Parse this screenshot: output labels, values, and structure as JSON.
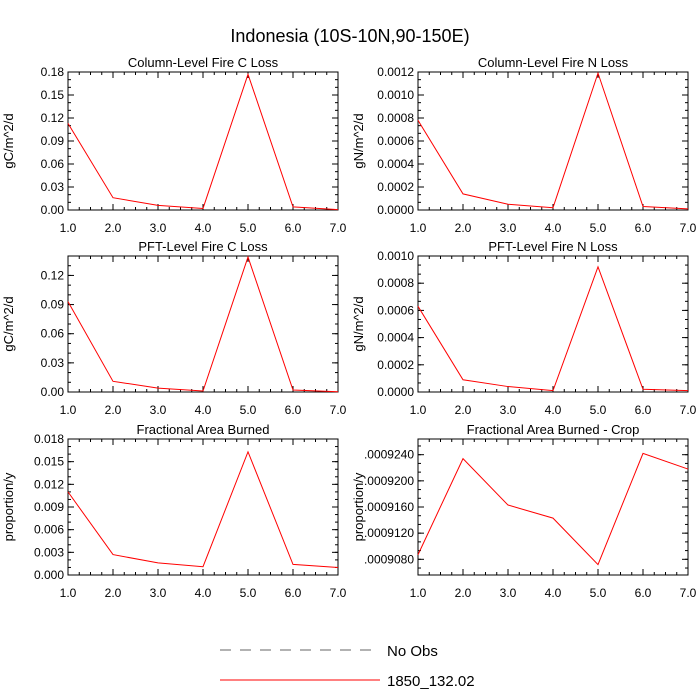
{
  "title": "Indonesia (10S-10N,90-150E)",
  "colors": {
    "series": "#ff0000",
    "obs": "#666666",
    "axis": "#000000"
  },
  "legend": [
    {
      "label": "No Obs",
      "style": "dashed"
    },
    {
      "label": "1850_132.02",
      "style": "solid"
    }
  ],
  "chart_data": [
    {
      "type": "line",
      "title": "Column-Level Fire C Loss",
      "ylabel": "gC/m^2/d",
      "xlim": [
        1,
        7
      ],
      "ylim": [
        0,
        0.18
      ],
      "xticks": [
        "1.0",
        "2.0",
        "3.0",
        "4.0",
        "5.0",
        "6.0",
        "7.0"
      ],
      "yticks": [
        "0.00",
        "0.03",
        "0.06",
        "0.09",
        "0.12",
        "0.15",
        "0.18"
      ],
      "series": [
        {
          "name": "1850_132.02",
          "x": [
            1,
            2,
            3,
            4,
            5,
            6,
            7
          ],
          "values": [
            0.113,
            0.016,
            0.006,
            0.002,
            0.177,
            0.004,
            0.0005
          ]
        }
      ]
    },
    {
      "type": "line",
      "title": "Column-Level Fire N Loss",
      "ylabel": "gN/m^2/d",
      "xlim": [
        1,
        7
      ],
      "ylim": [
        0,
        0.0012
      ],
      "xticks": [
        "1.0",
        "2.0",
        "3.0",
        "4.0",
        "5.0",
        "6.0",
        "7.0"
      ],
      "yticks": [
        "0.0000",
        "0.0002",
        "0.0004",
        "0.0006",
        "0.0008",
        "0.0010",
        "0.0012"
      ],
      "series": [
        {
          "name": "1850_132.02",
          "x": [
            1,
            2,
            3,
            4,
            5,
            6,
            7
          ],
          "values": [
            0.00078,
            0.00014,
            5e-05,
            2e-05,
            0.00119,
            3e-05,
            1e-05
          ]
        }
      ]
    },
    {
      "type": "line",
      "title": "PFT-Level Fire C Loss",
      "ylabel": "gC/m^2/d",
      "xlim": [
        1,
        7
      ],
      "ylim": [
        0,
        0.14
      ],
      "xticks": [
        "1.0",
        "2.0",
        "3.0",
        "4.0",
        "5.0",
        "6.0",
        "7.0"
      ],
      "yticks": [
        "0.00",
        "0.03",
        "0.06",
        "0.09",
        "0.12"
      ],
      "yticks_values": [
        0,
        0.03,
        0.06,
        0.09,
        0.12
      ],
      "series": [
        {
          "name": "1850_132.02",
          "x": [
            1,
            2,
            3,
            4,
            5,
            6,
            7
          ],
          "values": [
            0.093,
            0.011,
            0.004,
            0.001,
            0.139,
            0.002,
            0.0003
          ]
        }
      ]
    },
    {
      "type": "line",
      "title": "PFT-Level Fire N Loss",
      "ylabel": "gN/m^2/d",
      "xlim": [
        1,
        7
      ],
      "ylim": [
        0,
        0.001
      ],
      "xticks": [
        "1.0",
        "2.0",
        "3.0",
        "4.0",
        "5.0",
        "6.0",
        "7.0"
      ],
      "yticks": [
        "0.0000",
        "0.0002",
        "0.0004",
        "0.0006",
        "0.0008",
        "0.0010"
      ],
      "series": [
        {
          "name": "1850_132.02",
          "x": [
            1,
            2,
            3,
            4,
            5,
            6,
            7
          ],
          "values": [
            0.00063,
            9e-05,
            4e-05,
            1e-05,
            0.00092,
            2e-05,
            1e-05
          ]
        }
      ]
    },
    {
      "type": "line",
      "title": "Fractional Area Burned",
      "ylabel": "proportion/y",
      "xlim": [
        1,
        7
      ],
      "ylim": [
        0,
        0.018
      ],
      "xticks": [
        "1.0",
        "2.0",
        "3.0",
        "4.0",
        "5.0",
        "6.0",
        "7.0"
      ],
      "yticks": [
        "0.000",
        "0.003",
        "0.006",
        "0.009",
        "0.012",
        "0.015",
        "0.018"
      ],
      "series": [
        {
          "name": "1850_132.02",
          "x": [
            1,
            2,
            3,
            4,
            5,
            6,
            7
          ],
          "values": [
            0.011,
            0.0027,
            0.0016,
            0.0011,
            0.0163,
            0.0014,
            0.001
          ]
        }
      ]
    },
    {
      "type": "line",
      "title": "Fractional Area Burned - Crop",
      "ylabel": "proportion/y",
      "xlim": [
        1,
        7
      ],
      "ylim": [
        0.0009056,
        0.0009264
      ],
      "xticks": [
        "1.0",
        "2.0",
        "3.0",
        "4.0",
        "5.0",
        "6.0",
        "7.0"
      ],
      "yticks": [
        ".0009080",
        ".0009120",
        ".0009160",
        ".0009200",
        ".0009240"
      ],
      "yticks_values": [
        0.000908,
        0.000912,
        0.000916,
        0.00092,
        0.000924
      ],
      "series": [
        {
          "name": "1850_132.02",
          "x": [
            1,
            2,
            3,
            4,
            5,
            6,
            7
          ],
          "values": [
            0.0009087,
            0.0009234,
            0.0009163,
            0.0009143,
            0.0009072,
            0.0009242,
            0.0009218
          ]
        }
      ]
    }
  ]
}
